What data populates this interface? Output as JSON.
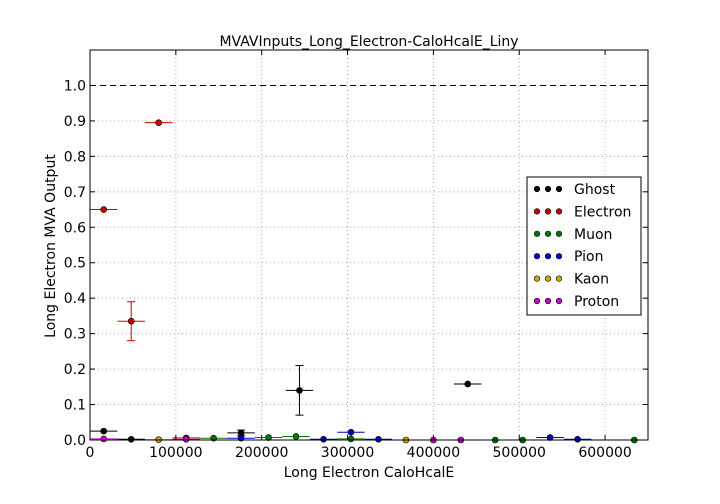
{
  "chart_data": {
    "type": "scatter",
    "title": "MVAVInputs_Long_Electron-CaloHcalE_Liny",
    "xlabel": "Long Electron CaloHcalE",
    "ylabel": "Long Electron MVA Output",
    "xlim": [
      0,
      650000
    ],
    "ylim": [
      0,
      1.1
    ],
    "x_ticks": [
      0,
      100000,
      200000,
      300000,
      400000,
      500000,
      600000
    ],
    "x_tick_labels": [
      "0",
      "100000",
      "200000",
      "300000",
      "400000",
      "500000",
      "600000"
    ],
    "y_ticks": [
      0.0,
      0.1,
      0.2,
      0.3,
      0.4,
      0.5,
      0.6,
      0.7,
      0.8,
      0.9,
      1.0
    ],
    "y_tick_labels": [
      "0.0",
      "0.1",
      "0.2",
      "0.3",
      "0.4",
      "0.5",
      "0.6",
      "0.7",
      "0.8",
      "0.9",
      "1.0"
    ],
    "grid": true,
    "reference_line_y": 1.0,
    "legend_position": "right",
    "x_error_half_width": 16000,
    "series": [
      {
        "name": "Ghost",
        "color": "#000000",
        "points": [
          {
            "x": 16000,
            "y": 0.025,
            "yerr": 0.0
          },
          {
            "x": 48000,
            "y": 0.002,
            "yerr": 0.0
          },
          {
            "x": 176000,
            "y": 0.02,
            "yerr": 0.008
          },
          {
            "x": 244000,
            "y": 0.14,
            "yerr": 0.07
          },
          {
            "x": 440000,
            "y": 0.158,
            "yerr": 0.0
          }
        ]
      },
      {
        "name": "Electron",
        "color": "#cc0000",
        "points": [
          {
            "x": 16000,
            "y": 0.65,
            "yerr": 0.0
          },
          {
            "x": 48000,
            "y": 0.335,
            "yerr": 0.055
          },
          {
            "x": 80000,
            "y": 0.895,
            "yerr": 0.0
          },
          {
            "x": 112000,
            "y": 0.006,
            "yerr": 0.0
          }
        ]
      },
      {
        "name": "Muon",
        "color": "#007700",
        "points": [
          {
            "x": 144000,
            "y": 0.005,
            "yerr": 0.0
          },
          {
            "x": 208000,
            "y": 0.007,
            "yerr": 0.0
          },
          {
            "x": 240000,
            "y": 0.01,
            "yerr": 0.0
          },
          {
            "x": 304000,
            "y": 0.003,
            "yerr": 0.0
          },
          {
            "x": 472000,
            "y": 0.0,
            "yerr": 0.0
          },
          {
            "x": 504000,
            "y": 0.0,
            "yerr": 0.0
          },
          {
            "x": 634000,
            "y": 0.0,
            "yerr": 0.0
          }
        ]
      },
      {
        "name": "Pion",
        "color": "#0000cc",
        "points": [
          {
            "x": 176000,
            "y": 0.005,
            "yerr": 0.0
          },
          {
            "x": 272000,
            "y": 0.002,
            "yerr": 0.0
          },
          {
            "x": 304000,
            "y": 0.022,
            "yerr": 0.0
          },
          {
            "x": 336000,
            "y": 0.002,
            "yerr": 0.0
          },
          {
            "x": 536000,
            "y": 0.007,
            "yerr": 0.0
          },
          {
            "x": 568000,
            "y": 0.002,
            "yerr": 0.0
          }
        ]
      },
      {
        "name": "Kaon",
        "color": "#ccaa00",
        "points": [
          {
            "x": 80000,
            "y": 0.001,
            "yerr": 0.0
          },
          {
            "x": 368000,
            "y": 0.0,
            "yerr": 0.0
          }
        ]
      },
      {
        "name": "Proton",
        "color": "#cc00cc",
        "points": [
          {
            "x": 16000,
            "y": 0.003,
            "yerr": 0.0
          },
          {
            "x": 112000,
            "y": 0.002,
            "yerr": 0.0
          },
          {
            "x": 400000,
            "y": 0.0,
            "yerr": 0.0
          },
          {
            "x": 432000,
            "y": 0.0,
            "yerr": 0.0
          }
        ]
      }
    ]
  }
}
